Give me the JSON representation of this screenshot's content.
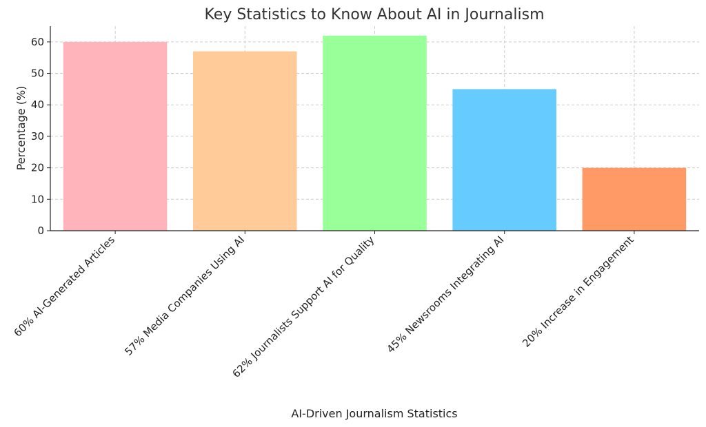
{
  "chart_data": {
    "type": "bar",
    "title": "Key Statistics to Know About AI in Journalism",
    "xlabel": "AI-Driven Journalism Statistics",
    "ylabel": "Percentage (%)",
    "categories": [
      "60% AI-Generated Articles",
      "57% Media Companies Using AI",
      "62% Journalists Support AI for Quality",
      "45% Newsrooms Integrating AI",
      "20% Increase in Engagement"
    ],
    "values": [
      60,
      57,
      62,
      45,
      20
    ],
    "colors": [
      "#ffb3ba",
      "#ffcc99",
      "#99ff99",
      "#66ccff",
      "#ff9966"
    ],
    "ylim": [
      0,
      65
    ],
    "yticks": [
      0,
      10,
      20,
      30,
      40,
      50,
      60
    ],
    "grid": true
  }
}
